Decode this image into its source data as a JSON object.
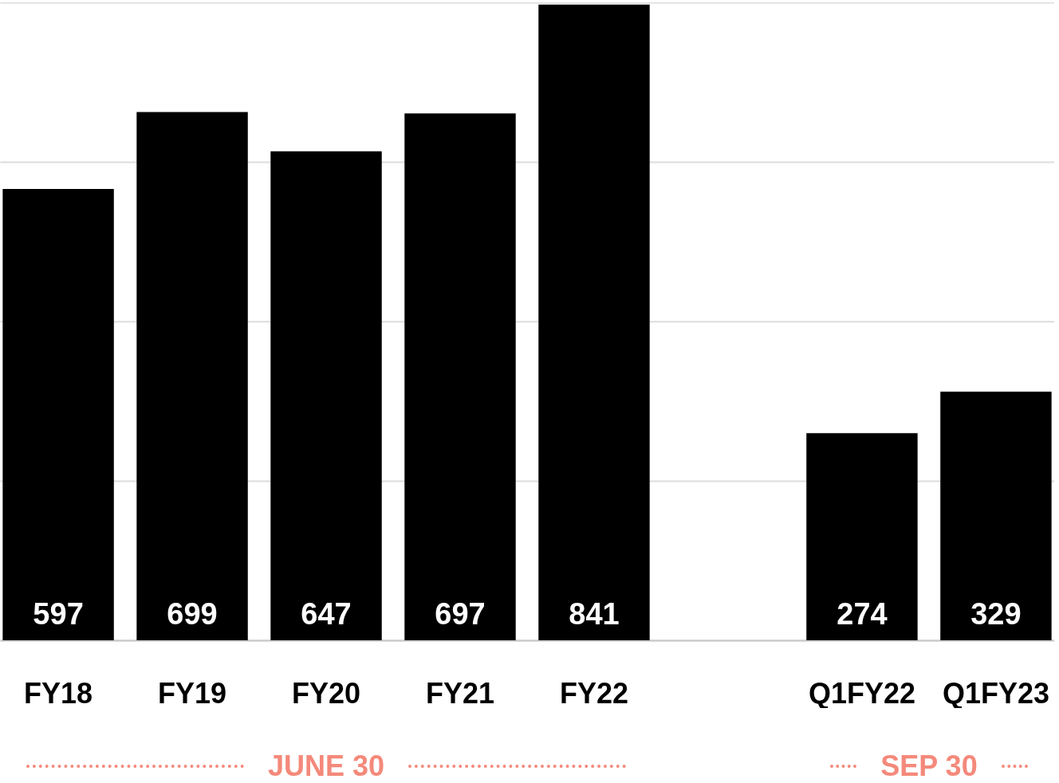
{
  "chart_data": {
    "type": "bar",
    "categories": [
      "FY18",
      "FY19",
      "FY20",
      "FY21",
      "FY22",
      null,
      "Q1FY22",
      "Q1FY23"
    ],
    "values": [
      597,
      699,
      647,
      697,
      841,
      null,
      274,
      329
    ],
    "color": "#000000",
    "data_labels": true,
    "grid": "y",
    "ylim": [
      0,
      844
    ],
    "yticks": [
      {
        "value": 0,
        "label": null
      },
      {
        "value": 211,
        "label": null
      },
      {
        "value": 422,
        "label": null
      },
      {
        "value": 633,
        "label": null
      },
      {
        "value": 844,
        "label": null
      }
    ],
    "tick_labels": "x",
    "annotations": [
      "JUNE 30",
      "SEP 30"
    ]
  }
}
